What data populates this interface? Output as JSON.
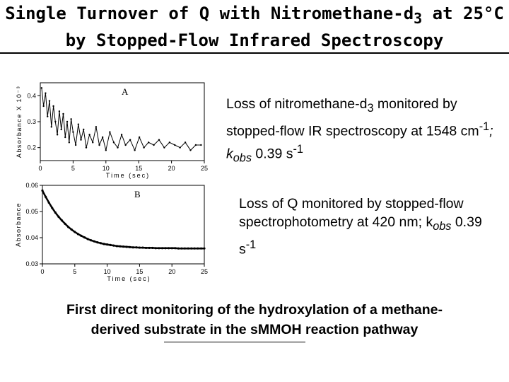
{
  "header": {
    "title_line1": "Single Turnover of Q with Nitromethane-d",
    "title_line1_sub": "3",
    "title_line1_end": " at 25°C",
    "title_line2": "by Stopped-Flow Infrared Spectroscopy"
  },
  "captions": {
    "a": {
      "text1": "Loss of nitromethane-d",
      "sub1": "3",
      "text2": " monitored by stopped-flow IR spectroscopy at 1548 cm",
      "sup1": "-1",
      "text3": "; k",
      "sub2": "obs",
      "text4": " 0.39 s",
      "sup2": "-1"
    },
    "b": {
      "text1": "Loss of Q monitored by stopped-flow spectrophotometry at 420 nm; k",
      "sub1": "obs",
      "text2": " 0.39 s",
      "sup1": "-1"
    }
  },
  "summary": {
    "line1": "First direct monitoring of the hydroxylation of a methane-",
    "line2": "derived substrate in the sMMOH reaction pathway"
  },
  "colors": {
    "ink": "#000000",
    "background": "#ffffff"
  },
  "chart_data": [
    {
      "type": "line",
      "panel_label": "A",
      "xlabel": "Time (sec)",
      "ylabel": "Absorbance X 10⁻³",
      "xlim": [
        0,
        25
      ],
      "ylim": [
        0.15,
        0.45
      ],
      "xticks": [
        "0",
        "5",
        "10",
        "15",
        "20",
        "25"
      ],
      "yticks": [
        "0.2",
        "0.3",
        "0.4"
      ],
      "grid": false,
      "x": [
        0.2,
        0.5,
        0.8,
        1.1,
        1.4,
        1.7,
        2.0,
        2.3,
        2.6,
        2.9,
        3.2,
        3.5,
        3.8,
        4.1,
        4.4,
        4.7,
        5.0,
        5.4,
        5.8,
        6.2,
        6.6,
        7.0,
        7.5,
        8.0,
        8.5,
        9.0,
        9.5,
        10.0,
        10.6,
        11.2,
        11.8,
        12.4,
        13.0,
        13.7,
        14.4,
        15.1,
        15.8,
        16.5,
        17.3,
        18.1,
        18.9,
        19.7,
        20.5,
        21.3,
        22.1,
        22.9,
        23.7,
        24.5
      ],
      "y": [
        0.43,
        0.36,
        0.41,
        0.32,
        0.38,
        0.28,
        0.36,
        0.3,
        0.25,
        0.34,
        0.27,
        0.33,
        0.24,
        0.3,
        0.22,
        0.31,
        0.26,
        0.21,
        0.29,
        0.23,
        0.27,
        0.2,
        0.25,
        0.22,
        0.28,
        0.21,
        0.24,
        0.19,
        0.26,
        0.22,
        0.2,
        0.25,
        0.21,
        0.23,
        0.19,
        0.24,
        0.2,
        0.22,
        0.21,
        0.23,
        0.2,
        0.22,
        0.21,
        0.2,
        0.22,
        0.19,
        0.21,
        0.21
      ]
    },
    {
      "type": "line",
      "panel_label": "B",
      "xlabel": "Time (sec)",
      "ylabel": "Absorbance",
      "xlim": [
        0,
        25
      ],
      "ylim": [
        0.03,
        0.06
      ],
      "xticks": [
        "0",
        "5",
        "10",
        "15",
        "20",
        "25"
      ],
      "yticks": [
        "0.03",
        "0.04",
        "0.05",
        "0.06"
      ],
      "grid": false,
      "x": [
        0,
        0.5,
        1,
        1.5,
        2,
        2.5,
        3,
        3.5,
        4,
        4.5,
        5,
        5.5,
        6,
        6.5,
        7,
        7.5,
        8,
        8.5,
        9,
        9.5,
        10,
        10.5,
        11,
        11.5,
        12,
        12.5,
        13,
        13.5,
        14,
        14.5,
        15,
        15.5,
        16,
        16.5,
        17,
        17.5,
        18,
        18.5,
        19,
        19.5,
        20,
        20.5,
        21,
        21.5,
        22,
        22.5,
        23,
        23.5,
        24,
        24.5,
        25
      ],
      "y": [
        0.058,
        0.0556,
        0.0534,
        0.0514,
        0.0496,
        0.048,
        0.0466,
        0.0453,
        0.0441,
        0.0431,
        0.0422,
        0.0414,
        0.0407,
        0.0401,
        0.0395,
        0.039,
        0.0386,
        0.0382,
        0.0379,
        0.0376,
        0.0374,
        0.0372,
        0.037,
        0.0368,
        0.0367,
        0.0366,
        0.0365,
        0.0364,
        0.0363,
        0.0363,
        0.0362,
        0.0362,
        0.0361,
        0.0361,
        0.0361,
        0.036,
        0.036,
        0.036,
        0.036,
        0.036,
        0.036,
        0.036,
        0.0359,
        0.0359,
        0.0359,
        0.0359,
        0.0359,
        0.0359,
        0.0359,
        0.0359,
        0.0359
      ]
    }
  ]
}
